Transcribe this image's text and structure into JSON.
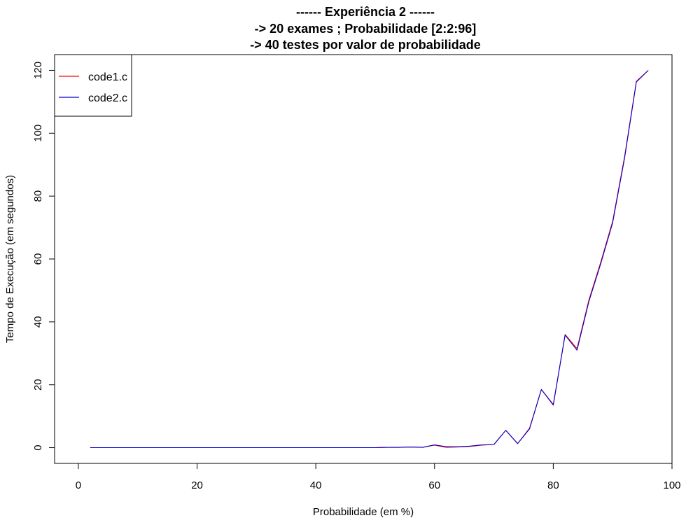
{
  "chart_data": {
    "type": "line",
    "title_lines": [
      "------ Experiência 2 ------",
      "-> 20 exames ; Probabilidade [2:2:96]",
      "-> 40 testes por valor de probabilidade"
    ],
    "xlabel": "Probabilidade (em %)",
    "ylabel": "Tempo de Execução (em segundos)",
    "xlim": [
      -4,
      100
    ],
    "ylim": [
      -5,
      125
    ],
    "xticks": [
      0,
      20,
      40,
      60,
      80,
      100
    ],
    "yticks": [
      0,
      20,
      40,
      60,
      80,
      100,
      120
    ],
    "legend_position": "top-left",
    "grid": false,
    "x": [
      2,
      4,
      6,
      8,
      10,
      12,
      14,
      16,
      18,
      20,
      22,
      24,
      26,
      28,
      30,
      32,
      34,
      36,
      38,
      40,
      42,
      44,
      46,
      48,
      50,
      52,
      54,
      56,
      58,
      60,
      62,
      64,
      66,
      68,
      70,
      72,
      74,
      76,
      78,
      80,
      82,
      84,
      86,
      88,
      90,
      92,
      94,
      96
    ],
    "series": [
      {
        "name": "code1.c",
        "color": "#ff0000",
        "values": [
          0,
          0,
          0,
          0,
          0,
          0,
          0,
          0,
          0,
          0,
          0,
          0,
          0,
          0,
          0,
          0,
          0,
          0,
          0,
          0,
          0,
          0,
          0,
          0,
          0,
          0.1,
          0.1,
          0.2,
          0.1,
          0.8,
          0.1,
          0.2,
          0.4,
          0.8,
          1.0,
          5.5,
          1.3,
          6.2,
          18.5,
          13.5,
          36.0,
          31.5,
          47.0,
          59.0,
          72.0,
          92.5,
          116.5,
          120.0
        ]
      },
      {
        "name": "code2.c",
        "color": "#0000cc",
        "values": [
          0,
          0,
          0,
          0,
          0,
          0,
          0,
          0,
          0,
          0,
          0,
          0,
          0,
          0,
          0,
          0,
          0,
          0,
          0,
          0,
          0,
          0,
          0,
          0,
          0,
          0.1,
          0.1,
          0.2,
          0.1,
          0.9,
          0.3,
          0.3,
          0.5,
          0.9,
          1.0,
          5.5,
          1.3,
          6.0,
          18.5,
          13.7,
          35.8,
          31.0,
          46.5,
          58.5,
          71.5,
          92.0,
          116.3,
          120.0
        ]
      }
    ]
  }
}
